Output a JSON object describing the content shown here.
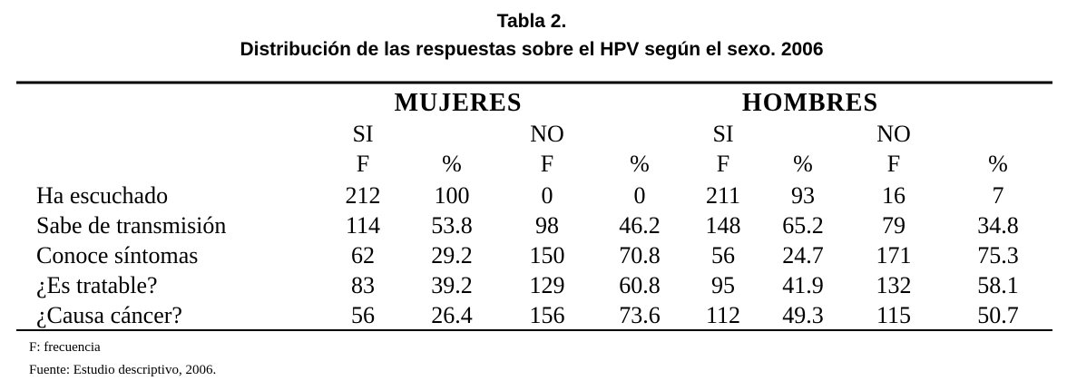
{
  "title": "Tabla 2.",
  "subtitle": "Distribución de las respuestas sobre el HPV según el sexo. 2006",
  "table": {
    "groups": [
      "MUJERES",
      "HOMBRES"
    ],
    "subgroups": [
      "SI",
      "NO",
      "SI",
      "NO"
    ],
    "columns": [
      "F",
      "%",
      "F",
      "%",
      "F",
      "%",
      "F",
      "%"
    ],
    "rows": [
      [
        "Ha escuchado",
        212,
        100,
        0,
        0,
        211,
        93,
        16,
        7
      ],
      [
        "Sabe de transmisión",
        114,
        53.8,
        98,
        46.2,
        148,
        65.2,
        79,
        34.8
      ],
      [
        "Conoce síntomas",
        62,
        29.2,
        150,
        70.8,
        56,
        24.7,
        171,
        75.3
      ],
      [
        "¿Es tratable?",
        83,
        39.2,
        129,
        60.8,
        95,
        41.9,
        132,
        58.1
      ],
      [
        "¿Causa cáncer?",
        56,
        26.4,
        156,
        73.6,
        112,
        49.3,
        115,
        50.7
      ]
    ]
  },
  "notes": [
    "F: frecuencia",
    "Fuente: Estudio descriptivo, 2006."
  ]
}
